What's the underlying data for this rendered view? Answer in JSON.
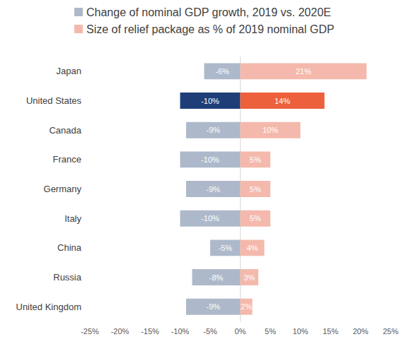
{
  "chart_data": {
    "type": "bar",
    "orientation": "horizontal",
    "categories": [
      "Japan",
      "United States",
      "Canada",
      "France",
      "Germany",
      "Italy",
      "China",
      "Russia",
      "United Kingdom"
    ],
    "series": [
      {
        "name": "Change of nominal GDP growth, 2019 vs. 2020E",
        "color": "#adb9ca",
        "colors": [
          "#adb9ca",
          "#1f3e78",
          "#adb9ca",
          "#adb9ca",
          "#adb9ca",
          "#adb9ca",
          "#adb9ca",
          "#adb9ca",
          "#adb9ca"
        ],
        "values": [
          -6,
          -10,
          -9,
          -10,
          -9,
          -10,
          -5,
          -8,
          -9
        ],
        "value_labels": [
          "-6%",
          "-10%",
          "-9%",
          "-10%",
          "-9%",
          "-10%",
          "-5%",
          "-8%",
          "-9%"
        ]
      },
      {
        "name": "Size of relief package as % of 2019 nominal GDP",
        "color": "#f4b9ac",
        "colors": [
          "#f4b9ac",
          "#ec603c",
          "#f4b9ac",
          "#f4b9ac",
          "#f4b9ac",
          "#f4b9ac",
          "#f4b9ac",
          "#f4b9ac",
          "#f4b9ac"
        ],
        "values": [
          21,
          14,
          10,
          5,
          5,
          5,
          4,
          3,
          2
        ],
        "value_labels": [
          "21%",
          "14%",
          "10%",
          "5%",
          "5%",
          "5%",
          "4%",
          "3%",
          "2%"
        ]
      }
    ],
    "xlim": [
      -25,
      25
    ],
    "xticks": [
      {
        "value": -25,
        "label": "-25%"
      },
      {
        "value": -20,
        "label": "-20%"
      },
      {
        "value": -15,
        "label": "-15%"
      },
      {
        "value": -10,
        "label": "-10%"
      },
      {
        "value": -5,
        "label": "-5%"
      },
      {
        "value": 0,
        "label": "0%"
      },
      {
        "value": 5,
        "label": "5%"
      },
      {
        "value": 10,
        "label": "10%"
      },
      {
        "value": 15,
        "label": "15%"
      },
      {
        "value": 20,
        "label": "20%"
      },
      {
        "value": 25,
        "label": "25%"
      }
    ],
    "data_labels": true,
    "grid": false,
    "legend": "top"
  }
}
